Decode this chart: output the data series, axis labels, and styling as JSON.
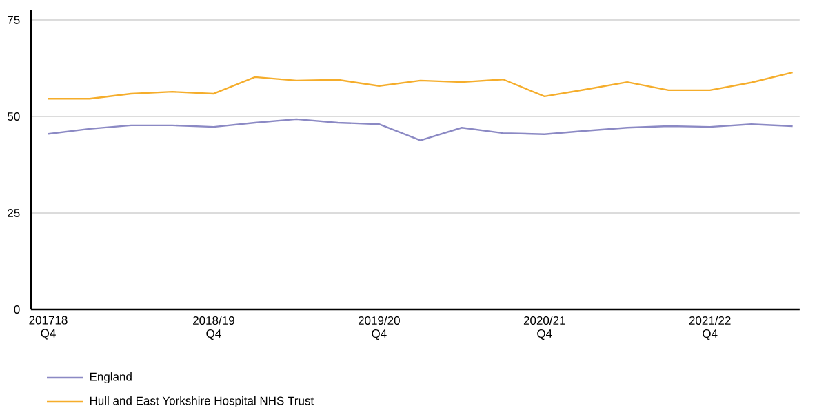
{
  "chart_data": {
    "type": "line",
    "categories": [
      "201718 Q4",
      null,
      null,
      null,
      "2018/19 Q4",
      null,
      null,
      null,
      "2019/20 Q4",
      null,
      null,
      null,
      "2020/21 Q4",
      null,
      null,
      null,
      "2021/22 Q4",
      null,
      null
    ],
    "series": [
      {
        "name": "England",
        "color": "#8b89c4",
        "values": [
          45.5,
          46.8,
          47.7,
          47.7,
          47.3,
          48.4,
          49.3,
          48.4,
          48.0,
          43.8,
          47.1,
          45.7,
          45.4,
          46.3,
          47.1,
          47.5,
          47.3,
          48.0,
          47.5
        ]
      },
      {
        "name": "Hull and East Yorkshire Hospital NHS Trust",
        "color": "#f5ad2b",
        "values": [
          54.6,
          54.6,
          55.9,
          56.4,
          55.9,
          60.2,
          59.3,
          59.5,
          57.9,
          59.3,
          58.9,
          59.6,
          55.2,
          57.0,
          58.9,
          56.8,
          56.8,
          58.8,
          61.4
        ]
      }
    ],
    "ylim": [
      0,
      77.5
    ],
    "yticks": [
      0,
      25,
      50,
      75
    ],
    "grid": "y",
    "legend": "bottom",
    "marker": "none",
    "line_style": "solid"
  }
}
